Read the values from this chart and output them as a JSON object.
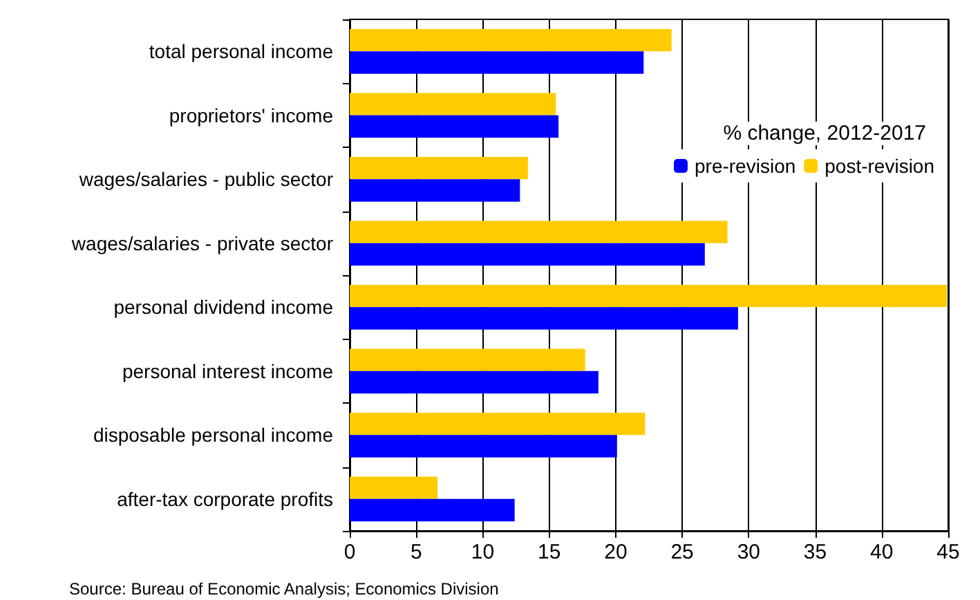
{
  "chart_data": {
    "type": "bar",
    "orientation": "horizontal",
    "categories": [
      "total personal income",
      "proprietors' income",
      "wages/salaries - public sector",
      "wages/salaries - private sector",
      "personal dividend income",
      "personal interest income",
      "disposable personal income",
      "after-tax corporate profits"
    ],
    "series": [
      {
        "name": "pre-revision",
        "color": "#0000ff",
        "values": [
          22.1,
          15.7,
          12.8,
          26.7,
          29.2,
          18.7,
          20.1,
          12.4
        ]
      },
      {
        "name": "post-revision",
        "color": "#ffcc00",
        "values": [
          24.2,
          15.5,
          13.4,
          28.4,
          44.9,
          17.7,
          22.2,
          6.6
        ]
      }
    ],
    "xlim": [
      0,
      45
    ],
    "xticks": [
      0,
      5,
      10,
      15,
      20,
      25,
      30,
      35,
      40,
      45
    ],
    "grid": "x",
    "legend": "right",
    "legend_title": "% change, 2012-2017",
    "annotations": [
      "Source: Bureau of Economic Analysis; Economics Division"
    ]
  }
}
